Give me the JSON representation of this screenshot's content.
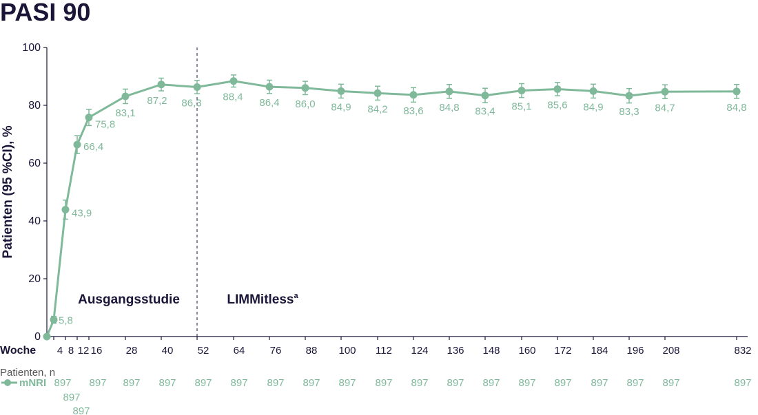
{
  "chart_data": {
    "type": "line",
    "title": "PASI 90",
    "ylabel": "Patienten (95 %CI), %",
    "ylim": [
      0,
      100
    ],
    "yticks": [
      0,
      20,
      40,
      60,
      80,
      100
    ],
    "xaxis_name": "Woche",
    "x_ticks": [
      "4",
      "8",
      "12",
      "16",
      "28",
      "40",
      "52",
      "64",
      "76",
      "88",
      "100",
      "112",
      "124",
      "136",
      "148",
      "160",
      "172",
      "184",
      "196",
      "208",
      "832"
    ],
    "phase_divider_week": "52",
    "phases": [
      {
        "label": "Ausgangsstudie"
      },
      {
        "label": "LIMMitless",
        "superscript": "a"
      }
    ],
    "series": [
      {
        "name": "mNRI",
        "color": "#7fb99a",
        "points": [
          {
            "x": "0",
            "y": 0,
            "label": ""
          },
          {
            "x": "4",
            "y": 5.8,
            "label": "5,8",
            "ci": 1.2
          },
          {
            "x": "8",
            "y": 43.9,
            "label": "43,9",
            "ci": 3.3
          },
          {
            "x": "12",
            "y": 66.4,
            "label": "66,4",
            "ci": 3.1
          },
          {
            "x": "16",
            "y": 75.8,
            "label": "75,8",
            "ci": 2.8
          },
          {
            "x": "28",
            "y": 83.1,
            "label": "83,1",
            "ci": 2.5
          },
          {
            "x": "40",
            "y": 87.2,
            "label": "87,2",
            "ci": 2.2
          },
          {
            "x": "52",
            "y": 86.3,
            "label": "86,3",
            "ci": 2.3
          },
          {
            "x": "64",
            "y": 88.4,
            "label": "88,4",
            "ci": 2.1
          },
          {
            "x": "76",
            "y": 86.4,
            "label": "86,4",
            "ci": 2.3
          },
          {
            "x": "88",
            "y": 86.0,
            "label": "86,0",
            "ci": 2.3
          },
          {
            "x": "100",
            "y": 84.9,
            "label": "84,9",
            "ci": 2.4
          },
          {
            "x": "112",
            "y": 84.2,
            "label": "84,2",
            "ci": 2.4
          },
          {
            "x": "124",
            "y": 83.6,
            "label": "83,6",
            "ci": 2.5
          },
          {
            "x": "136",
            "y": 84.8,
            "label": "84,8",
            "ci": 2.4
          },
          {
            "x": "148",
            "y": 83.4,
            "label": "83,4",
            "ci": 2.5
          },
          {
            "x": "160",
            "y": 85.1,
            "label": "85,1",
            "ci": 2.4
          },
          {
            "x": "172",
            "y": 85.6,
            "label": "85,6",
            "ci": 2.3
          },
          {
            "x": "184",
            "y": 84.9,
            "label": "84,9",
            "ci": 2.4
          },
          {
            "x": "196",
            "y": 83.3,
            "label": "83,3",
            "ci": 2.5
          },
          {
            "x": "208",
            "y": 84.7,
            "label": "84,7",
            "ci": 2.4
          },
          {
            "x": "832",
            "y": 84.8,
            "label": "84,8",
            "ci": 2.4
          }
        ]
      }
    ],
    "patients_table": {
      "title": "Patienten, n",
      "series_label": "mNRI",
      "values": [
        {
          "x": "4",
          "n": "897"
        },
        {
          "x": "8",
          "n": "897"
        },
        {
          "x": "12",
          "n": "897"
        },
        {
          "x": "16",
          "n": "897"
        },
        {
          "x": "28",
          "n": "897"
        },
        {
          "x": "40",
          "n": "897"
        },
        {
          "x": "52",
          "n": "897"
        },
        {
          "x": "64",
          "n": "897"
        },
        {
          "x": "76",
          "n": "897"
        },
        {
          "x": "88",
          "n": "897"
        },
        {
          "x": "100",
          "n": "897"
        },
        {
          "x": "112",
          "n": "897"
        },
        {
          "x": "124",
          "n": "897"
        },
        {
          "x": "136",
          "n": "897"
        },
        {
          "x": "148",
          "n": "897"
        },
        {
          "x": "160",
          "n": "897"
        },
        {
          "x": "172",
          "n": "897"
        },
        {
          "x": "184",
          "n": "897"
        },
        {
          "x": "196",
          "n": "897"
        },
        {
          "x": "208",
          "n": "897"
        },
        {
          "x": "832",
          "n": "897"
        }
      ]
    }
  }
}
